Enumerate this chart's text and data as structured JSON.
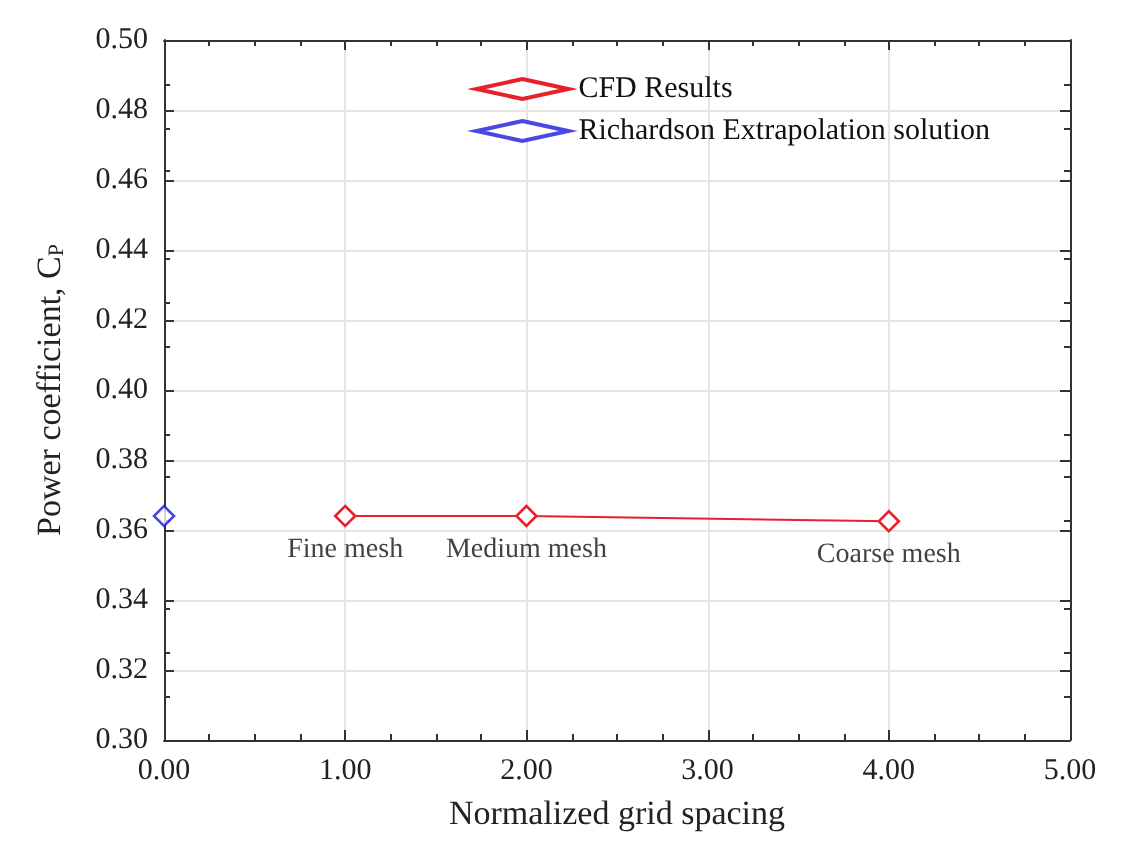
{
  "chart_data": {
    "type": "line",
    "xlabel": "Normalized grid spacing",
    "ylabel": "Power coefficient, C$_{P}$",
    "series": [
      {
        "name": "CFD Results",
        "color": "#e8202a",
        "x": [
          1,
          2,
          4
        ],
        "values": [
          0.364,
          0.364,
          0.3625
        ]
      },
      {
        "name": "Richardson Extrapolation solution",
        "type": "scatter",
        "color": "#1a1adc",
        "x": [
          0
        ],
        "values": [
          0.364
        ]
      }
    ],
    "annotations": [
      {
        "text": "Fine mesh",
        "x": 1,
        "y": 0.364
      },
      {
        "text": "Medium mesh",
        "x": 2,
        "y": 0.364
      },
      {
        "text": "Coarse mesh",
        "x": 4,
        "y": 0.3625
      }
    ],
    "xlim": [
      0,
      5
    ],
    "ylim": [
      0.3,
      0.5
    ],
    "xticks": [
      {
        "value": 0,
        "label": "0.00"
      },
      {
        "value": 1,
        "label": "1.00"
      },
      {
        "value": 2,
        "label": "2.00"
      },
      {
        "value": 3,
        "label": "3.00"
      },
      {
        "value": 4,
        "label": "4.00"
      },
      {
        "value": 5,
        "label": "5.00"
      }
    ],
    "yticks": [
      {
        "value": 0.3,
        "label": "0.30"
      },
      {
        "value": 0.32,
        "label": "0.32"
      },
      {
        "value": 0.34,
        "label": "0.34"
      },
      {
        "value": 0.36,
        "label": "0.36"
      },
      {
        "value": 0.38,
        "label": "0.38"
      },
      {
        "value": 0.4,
        "label": "0.40"
      },
      {
        "value": 0.42,
        "label": "0.42"
      },
      {
        "value": 0.44,
        "label": "0.44"
      },
      {
        "value": 0.46,
        "label": "0.46"
      },
      {
        "value": 0.48,
        "label": "0.48"
      },
      {
        "value": 0.5,
        "label": "0.50"
      }
    ],
    "grid": true,
    "legend": "top right",
    "marker": "diamond",
    "line_style": "solid"
  }
}
